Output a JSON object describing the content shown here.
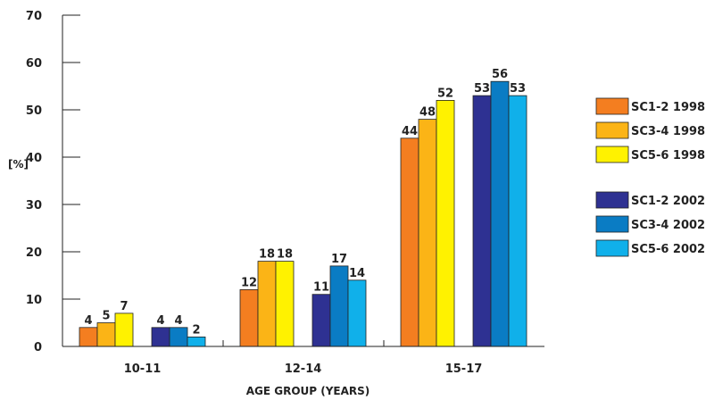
{
  "chart_data": {
    "type": "bar",
    "ylabel": "[%]",
    "xlabel": "AGE GROUP (YEARS)",
    "ylim": [
      0,
      70
    ],
    "yticks": [
      0,
      10,
      20,
      30,
      40,
      50,
      60,
      70
    ],
    "grid": false,
    "legend_position": "right",
    "categories": [
      "10-11",
      "12-14",
      "15-17"
    ],
    "groups": [
      {
        "name": "1998",
        "series": [
          {
            "name": "SC1-2 1998",
            "color": "#f47e20",
            "values": [
              4,
              12,
              44
            ]
          },
          {
            "name": "SC3-4 1998",
            "color": "#fbb416",
            "values": [
              5,
              18,
              48
            ]
          },
          {
            "name": "SC5-6 1998",
            "color": "#fff200",
            "values": [
              7,
              18,
              52
            ]
          }
        ]
      },
      {
        "name": "2002",
        "series": [
          {
            "name": "SC1-2 2002",
            "color": "#2e3192",
            "values": [
              4,
              11,
              53
            ]
          },
          {
            "name": "SC3-4 2002",
            "color": "#0a7cc4",
            "values": [
              4,
              17,
              56
            ]
          },
          {
            "name": "SC5-6 2002",
            "color": "#10b0ea",
            "values": [
              2,
              14,
              53
            ]
          }
        ]
      }
    ]
  }
}
